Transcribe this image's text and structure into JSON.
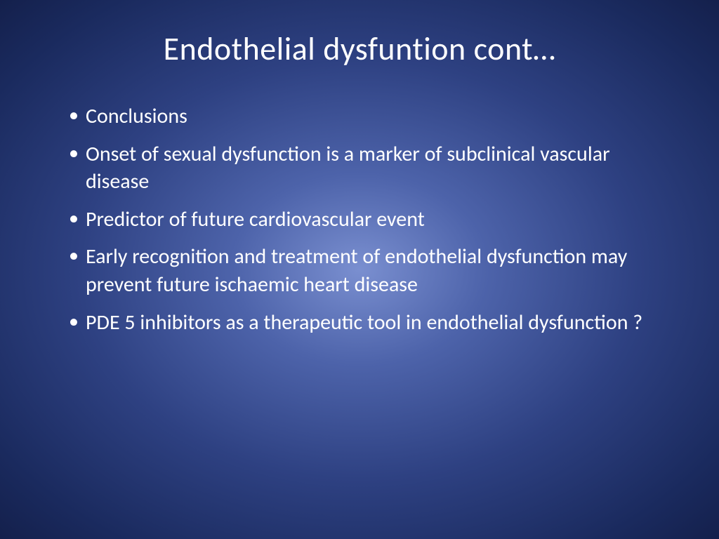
{
  "slide": {
    "title": "Endothelial dysfuntion cont…",
    "bullets": [
      "Conclusions",
      "Onset of sexual dysfunction is a marker of subclinical vascular disease",
      "Predictor of future cardiovascular event",
      "Early recognition and treatment of endothelial dysfunction may prevent future ischaemic heart disease",
      "PDE 5 inhibitors as a therapeutic tool in endothelial dysfunction ?"
    ],
    "style": {
      "background_gradient_center": "#7a8fd0",
      "background_gradient_mid": "#2e4182",
      "background_gradient_edge": "#14204c",
      "text_color": "#ffffff",
      "title_fontsize": 46,
      "bullet_fontsize": 30,
      "font_family": "Calibri"
    }
  }
}
